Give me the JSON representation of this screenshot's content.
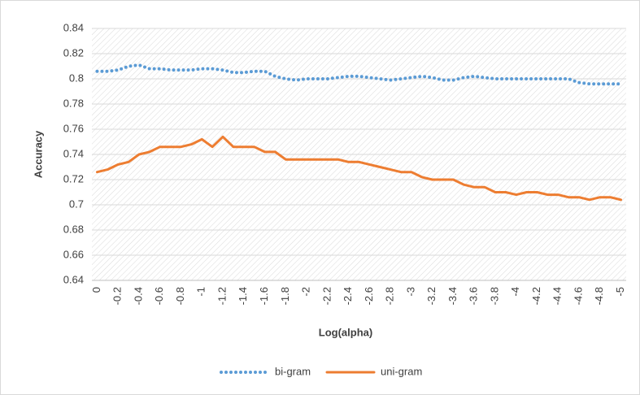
{
  "chart_data": {
    "type": "line",
    "xlabel": "Log(alpha)",
    "ylabel": "Accuracy",
    "categories": [
      "0",
      null,
      "-0.2",
      null,
      "-0.4",
      null,
      "-0.6",
      null,
      "-0.8",
      null,
      "-1",
      null,
      "-1.2",
      null,
      "-1.4",
      null,
      "-1.6",
      null,
      "-1.8",
      null,
      "-2",
      null,
      "-2.2",
      null,
      "-2.4",
      null,
      "-2.6",
      null,
      "-2.8",
      null,
      "-3",
      null,
      "-3.2",
      null,
      "-3.4",
      null,
      "-3.6",
      null,
      "-3.8",
      null,
      "-4",
      null,
      "-4.2",
      null,
      "-4.4",
      null,
      "-4.6",
      null,
      "-4.8",
      null,
      "-5"
    ],
    "series": [
      {
        "name": "bi-gram",
        "color": "#5b9bd5",
        "style": "dotted",
        "values": [
          0.806,
          0.806,
          0.807,
          0.81,
          0.811,
          0.808,
          0.808,
          0.807,
          0.807,
          0.807,
          0.808,
          0.808,
          0.807,
          0.805,
          0.805,
          0.806,
          0.806,
          0.802,
          0.8,
          0.799,
          0.8,
          0.8,
          0.8,
          0.801,
          0.802,
          0.802,
          0.801,
          0.8,
          0.799,
          0.8,
          0.801,
          0.802,
          0.801,
          0.799,
          0.799,
          0.801,
          0.802,
          0.801,
          0.8,
          0.8,
          0.8,
          0.8,
          0.8,
          0.8,
          0.8,
          0.8,
          0.797,
          0.796,
          0.796,
          0.796,
          0.796
        ]
      },
      {
        "name": "uni-gram",
        "color": "#ed7d31",
        "style": "solid",
        "values": [
          0.726,
          0.728,
          0.732,
          0.734,
          0.74,
          0.742,
          0.746,
          0.746,
          0.746,
          0.748,
          0.752,
          0.746,
          0.754,
          0.746,
          0.746,
          0.746,
          0.742,
          0.742,
          0.736,
          0.736,
          0.736,
          0.736,
          0.736,
          0.736,
          0.734,
          0.734,
          0.732,
          0.73,
          0.728,
          0.726,
          0.726,
          0.722,
          0.72,
          0.72,
          0.72,
          0.716,
          0.714,
          0.714,
          0.71,
          0.71,
          0.708,
          0.71,
          0.71,
          0.708,
          0.708,
          0.706,
          0.706,
          0.704,
          0.706,
          0.706,
          0.704
        ]
      }
    ],
    "ylim": [
      0.64,
      0.84
    ],
    "yticks": [
      0.64,
      0.66,
      0.68,
      0.7,
      0.72,
      0.74,
      0.76,
      0.78,
      0.8,
      0.82,
      0.84
    ],
    "grid": true,
    "legend": "bottom"
  }
}
